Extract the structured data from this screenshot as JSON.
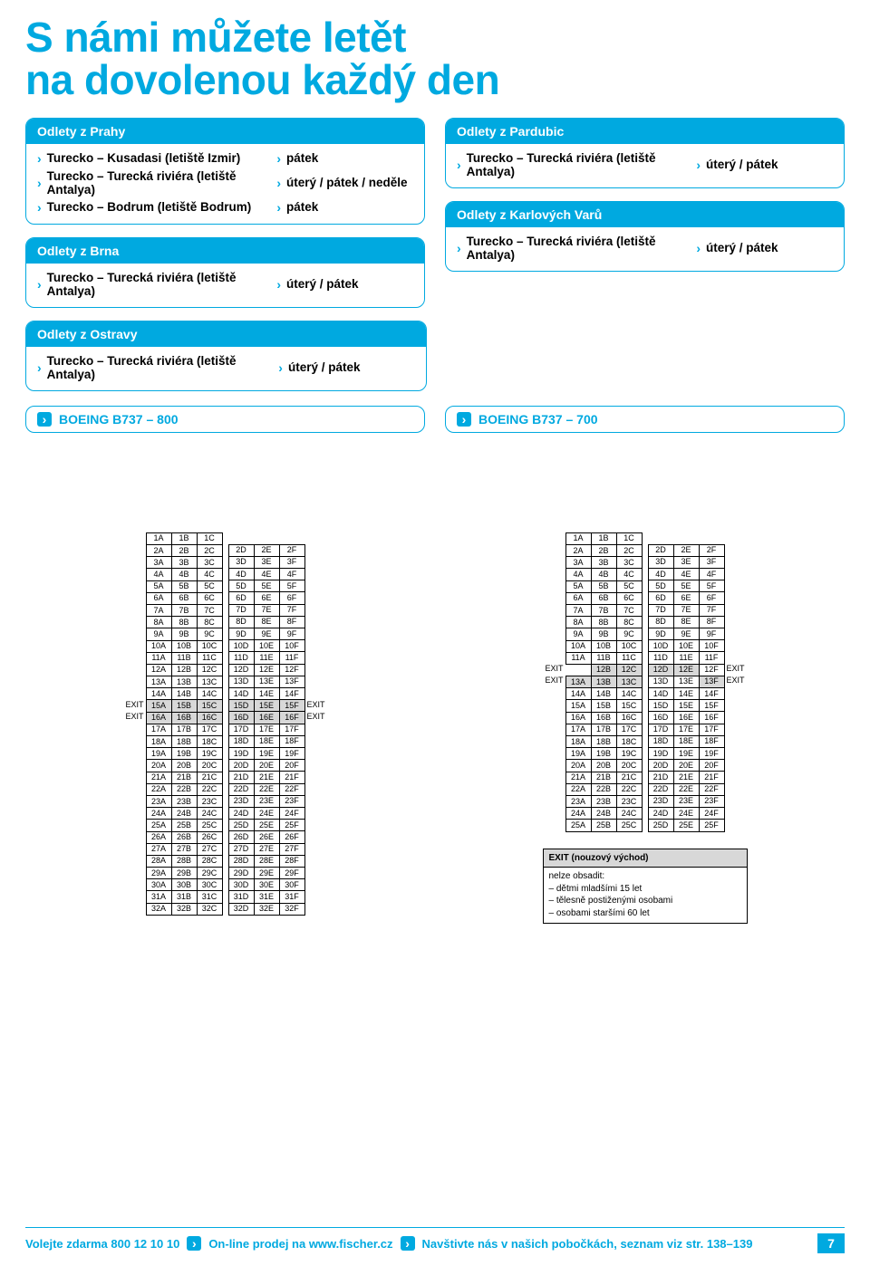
{
  "title_line1": "S námi můžete letět",
  "title_line2": "na dovolenou každý den",
  "colors": {
    "brand": "#00a9e0",
    "shade": "#d8d8d8",
    "text": "#000000",
    "background": "#ffffff"
  },
  "groups": {
    "praha": {
      "header": "Odlety z Prahy",
      "rows": [
        {
          "dest": "Turecko – Kusadasi (letiště Izmir)",
          "days": "pátek"
        },
        {
          "dest": "Turecko – Turecká riviéra (letiště Antalya)",
          "days": "úterý / pátek / neděle"
        },
        {
          "dest": "Turecko – Bodrum (letiště Bodrum)",
          "days": "pátek"
        }
      ]
    },
    "brno": {
      "header": "Odlety z Brna",
      "rows": [
        {
          "dest": "Turecko – Turecká riviéra (letiště Antalya)",
          "days": "úterý / pátek"
        }
      ]
    },
    "pardubice": {
      "header": "Odlety z Pardubic",
      "rows": [
        {
          "dest": "Turecko – Turecká riviéra (letiště Antalya)",
          "days": "úterý / pátek"
        }
      ]
    },
    "kv": {
      "header": "Odlety z Karlových Varů",
      "rows": [
        {
          "dest": "Turecko – Turecká riviéra (letiště Antalya)",
          "days": "úterý / pátek"
        }
      ]
    },
    "ostrava": {
      "header": "Odlety z Ostravy",
      "rows": [
        {
          "dest": "Turecko – Turecká riviéra (letiště Antalya)",
          "days": "úterý / pátek"
        }
      ]
    }
  },
  "planes": {
    "left": "BOEING B737 – 800",
    "right": "BOEING B737 – 700"
  },
  "seatmap_800": {
    "rows_abc": 32,
    "row2_start_def": 2,
    "rows_def_end": 32,
    "exit_shade_rows": [
      15,
      16
    ],
    "exit_left_rows": [
      15,
      16
    ],
    "exit_right_rows": [
      15,
      16
    ]
  },
  "seatmap_700": {
    "rows_abc": 25,
    "row2_start_def": 2,
    "rows_def_end": 25,
    "exit_shade_rows_abc": [
      12,
      13
    ],
    "exit_shade_rows_def": [
      12,
      13
    ],
    "exit_left_rows": [
      12,
      13
    ],
    "exit_right_rows": [
      12,
      13
    ],
    "row12_empty_a": true
  },
  "exit_label": "EXIT",
  "note": {
    "header": "EXIT (nouzový východ)",
    "intro": "nelze obsadit:",
    "lines": [
      "– dětmi mladšími 15 let",
      "– tělesně postiženými osobami",
      "– osobami staršími 60 let"
    ]
  },
  "footer": {
    "phone": "Volejte zdarma 800 12 10 10",
    "online": "On-line prodej na www.fischer.cz",
    "branches": "Navštivte nás v našich pobočkách, seznam viz str. 138–139",
    "page": "7"
  }
}
